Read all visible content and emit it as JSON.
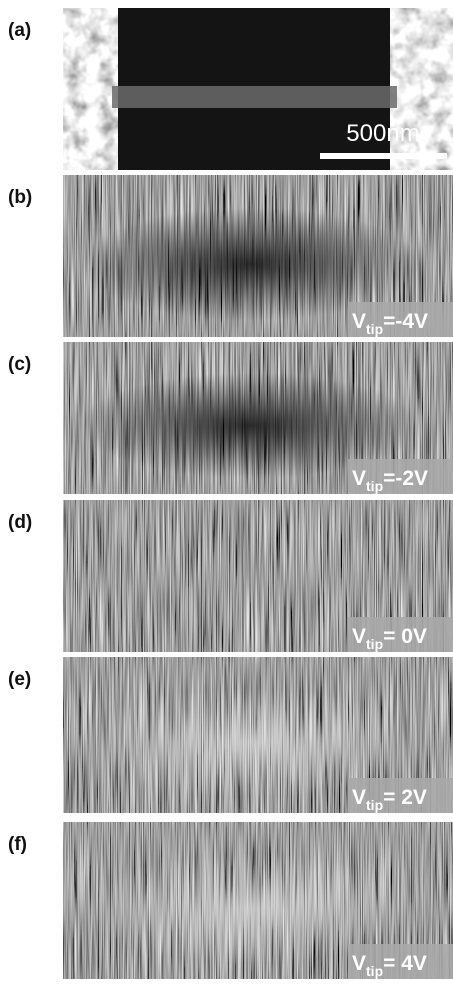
{
  "panels": [
    {
      "label": "(a)",
      "scale_bar": "500nm"
    },
    {
      "label": "(b)",
      "annotation": {
        "symbol": "V",
        "subscript": "tip",
        "value": "=-4V"
      }
    },
    {
      "label": "(c)",
      "annotation": {
        "symbol": "V",
        "subscript": "tip",
        "value": "=-2V"
      }
    },
    {
      "label": "(d)",
      "annotation": {
        "symbol": "V",
        "subscript": "tip",
        "value": "= 0V"
      }
    },
    {
      "label": "(e)",
      "annotation": {
        "symbol": "V",
        "subscript": "tip",
        "value": "= 2V"
      }
    },
    {
      "label": "(f)",
      "annotation": {
        "symbol": "V",
        "subscript": "tip",
        "value": "= 4V"
      }
    }
  ]
}
